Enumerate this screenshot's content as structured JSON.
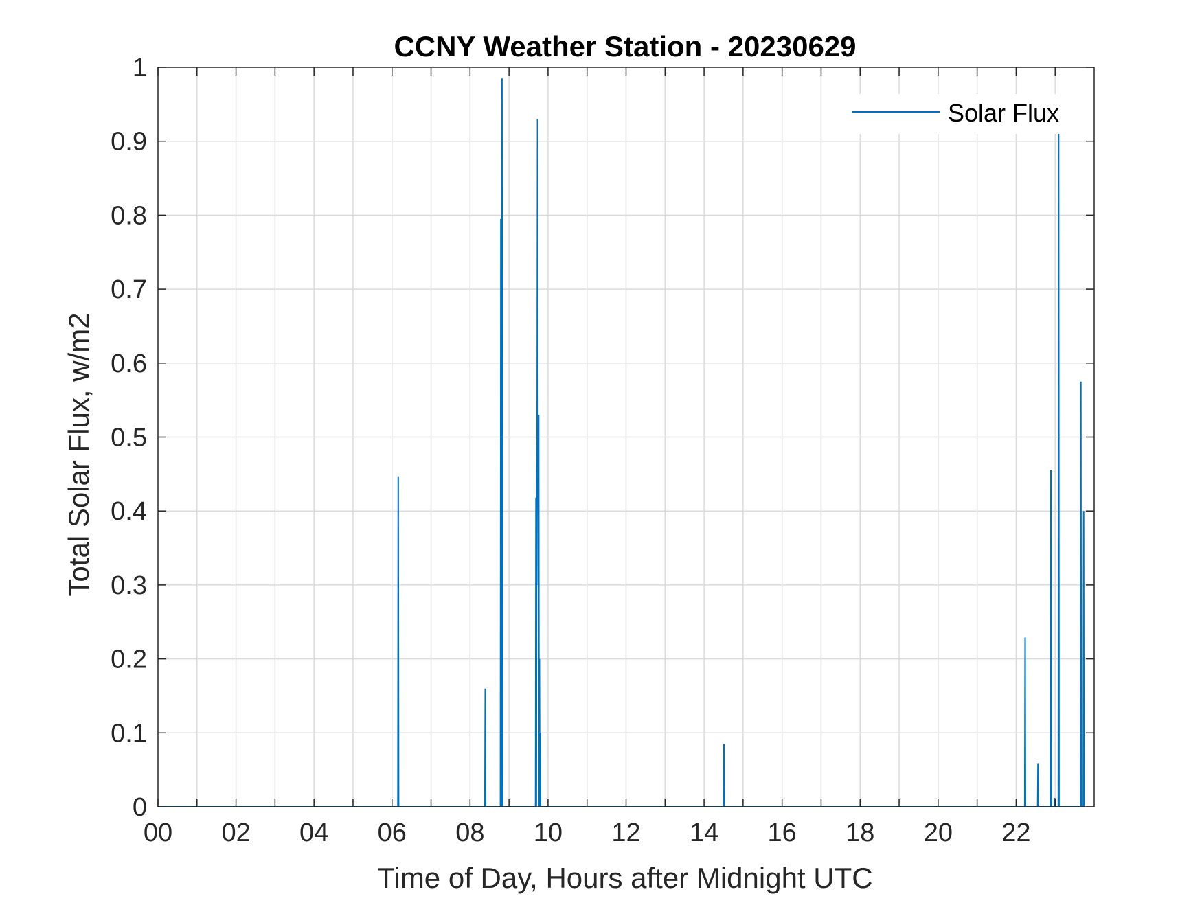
{
  "chart_data": {
    "type": "line",
    "title": "CCNY Weather Station - 20230629",
    "xlabel": "Time of Day, Hours after Midnight UTC",
    "ylabel": "Total Solar Flux, w/m2",
    "xlim": [
      0,
      24
    ],
    "ylim": [
      0,
      1
    ],
    "x_ticks": [
      0,
      2,
      4,
      6,
      8,
      10,
      12,
      14,
      16,
      18,
      20,
      22
    ],
    "x_tick_labels": [
      "00",
      "02",
      "04",
      "06",
      "08",
      "10",
      "12",
      "14",
      "16",
      "18",
      "20",
      "22"
    ],
    "y_ticks": [
      0,
      0.1,
      0.2,
      0.3,
      0.4,
      0.5,
      0.6,
      0.7,
      0.8,
      0.9,
      1
    ],
    "y_tick_labels": [
      "0",
      "0.1",
      "0.2",
      "0.3",
      "0.4",
      "0.5",
      "0.6",
      "0.7",
      "0.8",
      "0.9",
      "1"
    ],
    "grid": true,
    "legend": "top-right",
    "colors": {
      "series": "#0072BD",
      "axes": "#262626",
      "grid": "#dcdcdc"
    },
    "series": [
      {
        "name": "Solar Flux",
        "x": [
          0,
          6.15,
          6.16,
          6.17,
          8.38,
          8.39,
          8.4,
          8.78,
          8.79,
          8.81,
          8.82,
          8.83,
          9.68,
          9.69,
          9.7,
          9.71,
          9.72,
          9.73,
          9.74,
          9.75,
          9.76,
          9.77,
          9.78,
          9.79,
          9.8,
          9.81,
          14.5,
          14.51,
          14.52,
          22.22,
          22.23,
          22.24,
          22.55,
          22.56,
          22.57,
          22.88,
          22.89,
          22.9,
          22.98,
          22.99,
          23.0,
          23.08,
          23.09,
          23.1,
          23.65,
          23.66,
          23.67,
          23.72,
          23.73,
          23.74,
          23.76
        ],
        "y": [
          0,
          0,
          0.447,
          0,
          0,
          0.16,
          0,
          0,
          0.795,
          0,
          0.985,
          0,
          0,
          0.418,
          0,
          0.45,
          0.5,
          0.93,
          0.47,
          0.3,
          0.53,
          0,
          0.2,
          0,
          0.1,
          0,
          0,
          0.085,
          0,
          0,
          0.229,
          0,
          0,
          0.059,
          0,
          0,
          0.455,
          0,
          0,
          0.012,
          0,
          0,
          0.91,
          0,
          0,
          0.575,
          0,
          0,
          0.4,
          0,
          0
        ]
      }
    ]
  }
}
